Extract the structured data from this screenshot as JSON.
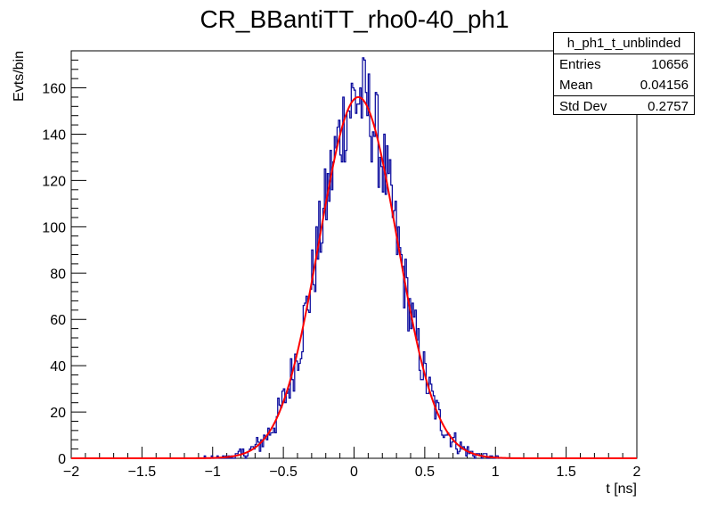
{
  "chart_data": {
    "type": "histogram",
    "title": "CR_BBantiTT_rho0-40_ph1",
    "xlabel": "t [ns]",
    "ylabel": "Evts/bin",
    "xlim": [
      -2,
      2
    ],
    "ylim": [
      0,
      176
    ],
    "xticks": [
      -2,
      -1.5,
      -1,
      -0.5,
      0,
      0.5,
      1,
      1.5,
      2
    ],
    "yticks": [
      0,
      20,
      40,
      60,
      80,
      100,
      120,
      140,
      160
    ],
    "histogram": {
      "name": "h_ph1_t_unblinded",
      "color": "#000099",
      "bin_width": 0.01,
      "entries": 10656,
      "mean": 0.04156,
      "std_dev": 0.2757
    },
    "fit": {
      "function": "gaussian",
      "color": "#ff0000",
      "amplitude": 156,
      "mean": 0.03,
      "sigma": 0.275
    },
    "stats": {
      "name": "h_ph1_t_unblinded",
      "rows": [
        {
          "label": "Entries",
          "value": "10656"
        },
        {
          "label": "Mean",
          "value": "0.04156"
        },
        {
          "label": "Std Dev",
          "value": "0.2757"
        }
      ]
    }
  }
}
